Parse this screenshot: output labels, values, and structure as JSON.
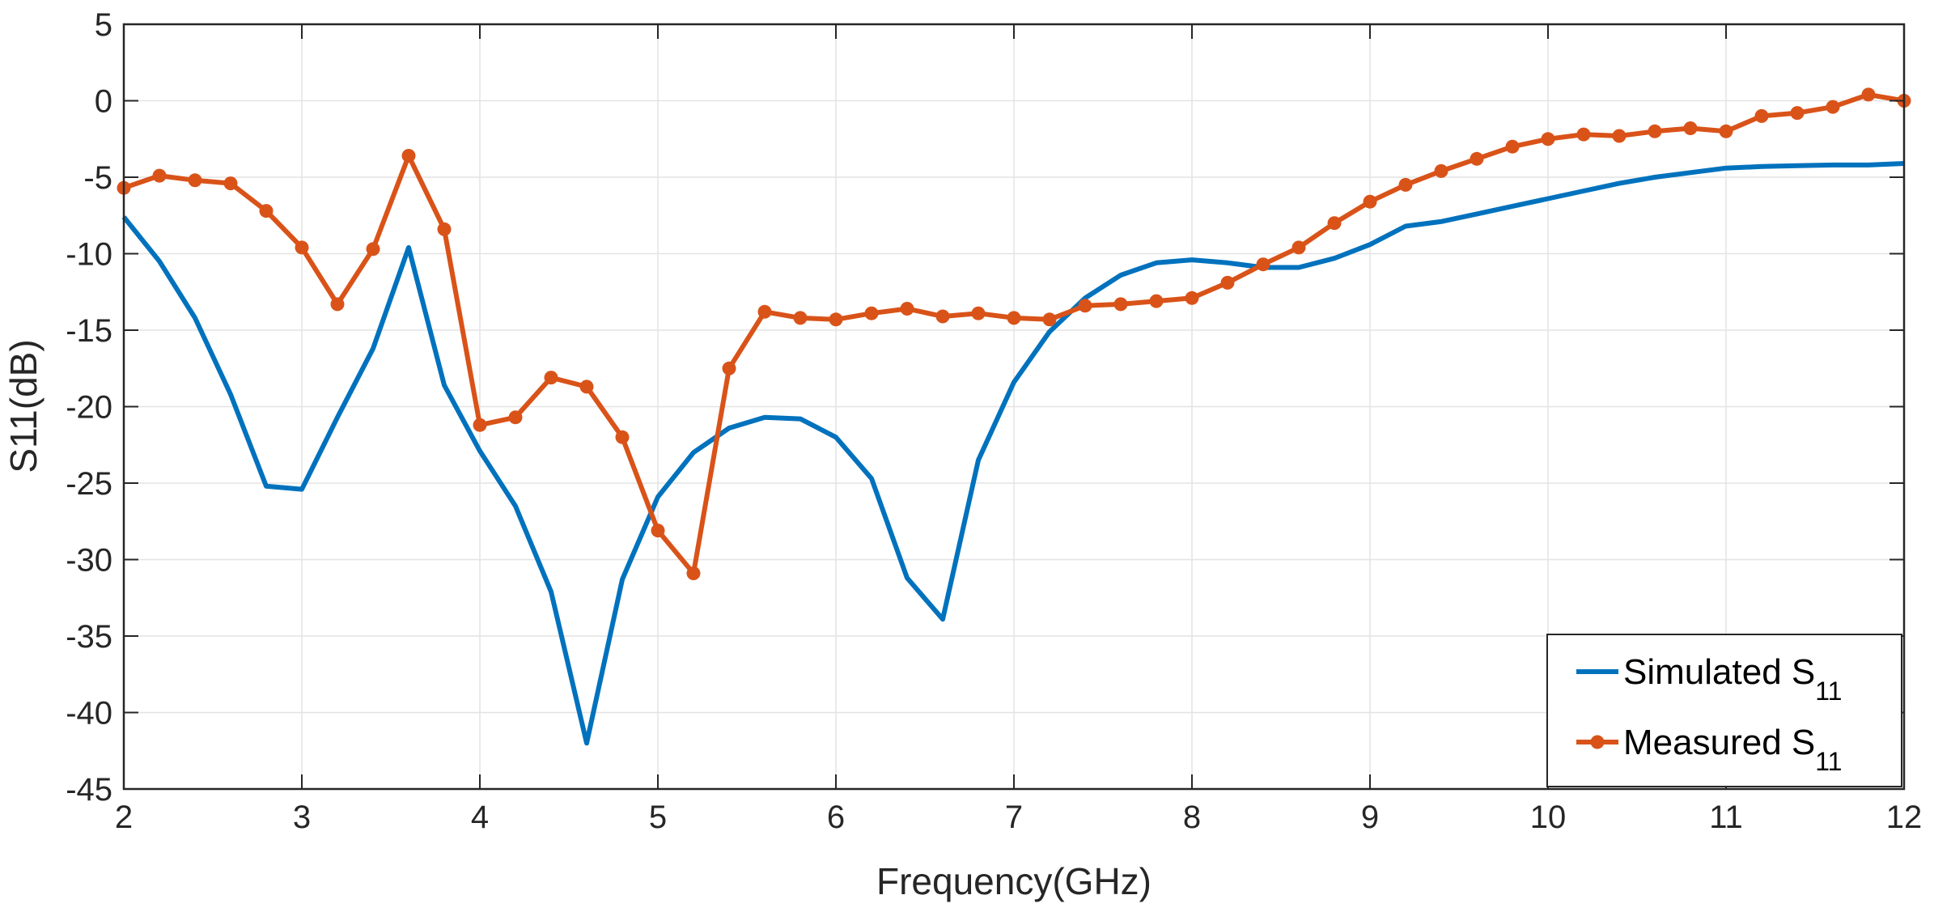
{
  "chart_data": {
    "type": "line",
    "xlabel": "Frequency(GHz)",
    "ylabel": "S11(dB)",
    "xlim": [
      2,
      12
    ],
    "ylim": [
      -45,
      5
    ],
    "xticks": [
      "2",
      "3",
      "4",
      "5",
      "6",
      "7",
      "8",
      "9",
      "10",
      "11",
      "12"
    ],
    "yticks": [
      "5",
      "0",
      "-5",
      "-10",
      "-15",
      "-20",
      "-25",
      "-30",
      "-35",
      "-40",
      "-45"
    ],
    "grid": true,
    "legend_position": "bottom-right",
    "series": [
      {
        "name": "Simulated S",
        "subscript": "11",
        "color": "#0072BD",
        "marker": "none",
        "x": [
          2.0,
          2.2,
          2.4,
          2.6,
          2.8,
          3.0,
          3.2,
          3.4,
          3.6,
          3.8,
          4.0,
          4.2,
          4.4,
          4.6,
          4.8,
          5.0,
          5.2,
          5.4,
          5.6,
          5.8,
          6.0,
          6.2,
          6.4,
          6.6,
          6.8,
          7.0,
          7.2,
          7.4,
          7.6,
          7.8,
          8.0,
          8.2,
          8.4,
          8.6,
          8.8,
          9.0,
          9.2,
          9.4,
          9.6,
          9.8,
          10.0,
          10.2,
          10.4,
          10.6,
          10.8,
          11.0,
          11.2,
          11.4,
          11.6,
          11.8,
          12.0
        ],
        "y": [
          -7.6,
          -10.5,
          -14.2,
          -19.2,
          -25.2,
          -25.4,
          -20.7,
          -16.2,
          -9.6,
          -18.6,
          -22.9,
          -26.5,
          -32.1,
          -42.0,
          -31.3,
          -25.9,
          -23.0,
          -21.4,
          -20.7,
          -20.8,
          -22.0,
          -24.7,
          -31.2,
          -33.9,
          -23.5,
          -18.4,
          -15.1,
          -12.9,
          -11.4,
          -10.6,
          -10.4,
          -10.6,
          -10.9,
          -10.9,
          -10.3,
          -9.4,
          -8.2,
          -7.9,
          -7.4,
          -6.9,
          -6.4,
          -5.9,
          -5.4,
          -5.0,
          -4.7,
          -4.4,
          -4.3,
          -4.25,
          -4.2,
          -4.2,
          -4.1
        ]
      },
      {
        "name": "Measured S",
        "subscript": "11",
        "color": "#D95319",
        "marker": "circle",
        "x": [
          2.0,
          2.2,
          2.4,
          2.6,
          2.8,
          3.0,
          3.2,
          3.4,
          3.6,
          3.8,
          4.0,
          4.2,
          4.4,
          4.6,
          4.8,
          5.0,
          5.2,
          5.4,
          5.6,
          5.8,
          6.0,
          6.2,
          6.4,
          6.6,
          6.8,
          7.0,
          7.2,
          7.4,
          7.6,
          7.8,
          8.0,
          8.2,
          8.4,
          8.6,
          8.8,
          9.0,
          9.2,
          9.4,
          9.6,
          9.8,
          10.0,
          10.2,
          10.4,
          10.6,
          10.8,
          11.0,
          11.2,
          11.4,
          11.6,
          11.8,
          12.0
        ],
        "y": [
          -5.7,
          -4.9,
          -5.2,
          -5.4,
          -7.2,
          -9.6,
          -13.3,
          -9.7,
          -3.6,
          -8.4,
          -21.2,
          -20.7,
          -18.1,
          -18.7,
          -22.0,
          -28.1,
          -30.9,
          -17.5,
          -13.8,
          -14.2,
          -14.3,
          -13.9,
          -13.6,
          -14.1,
          -13.9,
          -14.2,
          -14.3,
          -13.4,
          -13.3,
          -13.1,
          -12.9,
          -11.9,
          -10.7,
          -9.6,
          -8.0,
          -6.6,
          -5.5,
          -4.6,
          -3.8,
          -3.0,
          -2.5,
          -2.2,
          -2.3,
          -2.0,
          -1.8,
          -2.0,
          -1.0,
          -0.8,
          -0.4,
          0.4,
          0.0
        ]
      }
    ]
  }
}
